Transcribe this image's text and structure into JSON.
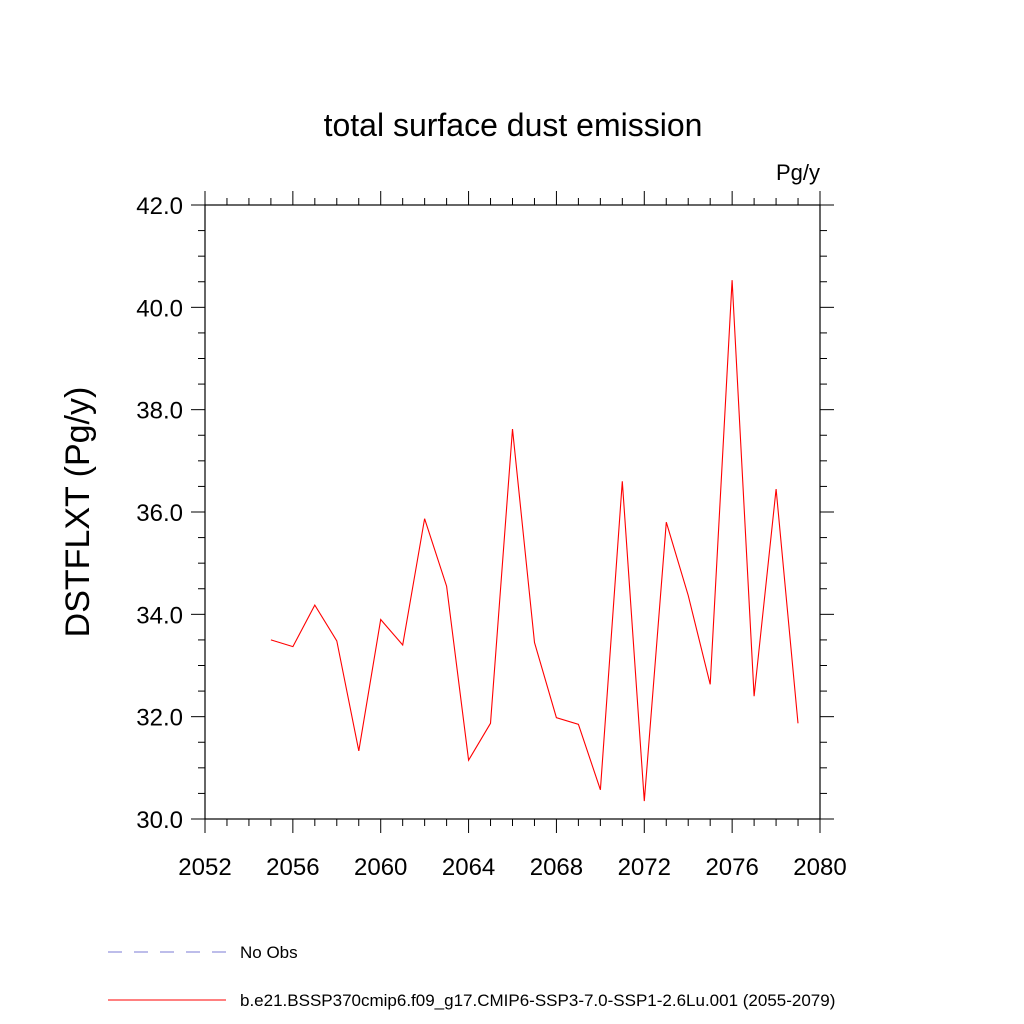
{
  "chart_data": {
    "type": "line",
    "title": "total surface dust emission",
    "units": "Pg/y",
    "ylabel": "DSTFLXT  (Pg/y)",
    "xlabel": "",
    "xlim": [
      2052,
      2080
    ],
    "ylim": [
      30.0,
      42.0
    ],
    "x_ticks": [
      2052,
      2056,
      2060,
      2064,
      2068,
      2072,
      2076,
      2080
    ],
    "x_tick_labels": [
      "2052",
      "2056",
      "2060",
      "2064",
      "2068",
      "2072",
      "2076",
      "2080"
    ],
    "y_ticks": [
      30.0,
      32.0,
      34.0,
      36.0,
      38.0,
      40.0,
      42.0
    ],
    "y_tick_labels": [
      "30.0",
      "32.0",
      "34.0",
      "36.0",
      "38.0",
      "40.0",
      "42.0"
    ],
    "grid": false,
    "legend_position": "bottom",
    "series": [
      {
        "name": "b.e21.BSSP370cmip6.f09_g17.CMIP6-SSP3-7.0-SSP1-2.6Lu.001 (2055-2079)",
        "color": "#ff0000",
        "x": [
          2055,
          2056,
          2057,
          2058,
          2059,
          2060,
          2061,
          2062,
          2063,
          2064,
          2065,
          2066,
          2067,
          2068,
          2069,
          2070,
          2071,
          2072,
          2073,
          2074,
          2075,
          2076,
          2077,
          2078,
          2079
        ],
        "y": [
          33.5,
          33.37,
          34.18,
          33.48,
          31.33,
          33.9,
          33.4,
          35.87,
          34.55,
          31.15,
          31.87,
          37.62,
          33.45,
          31.98,
          31.85,
          30.57,
          36.6,
          30.35,
          35.8,
          34.37,
          32.63,
          40.53,
          32.4,
          36.45,
          31.87
        ]
      }
    ],
    "legend": [
      {
        "label": "No Obs",
        "color": "#7b7bd6",
        "style": "dashed"
      },
      {
        "label": "b.e21.BSSP370cmip6.f09_g17.CMIP6-SSP3-7.0-SSP1-2.6Lu.001 (2055-2079)",
        "color": "#ff0000",
        "style": "solid"
      }
    ]
  }
}
